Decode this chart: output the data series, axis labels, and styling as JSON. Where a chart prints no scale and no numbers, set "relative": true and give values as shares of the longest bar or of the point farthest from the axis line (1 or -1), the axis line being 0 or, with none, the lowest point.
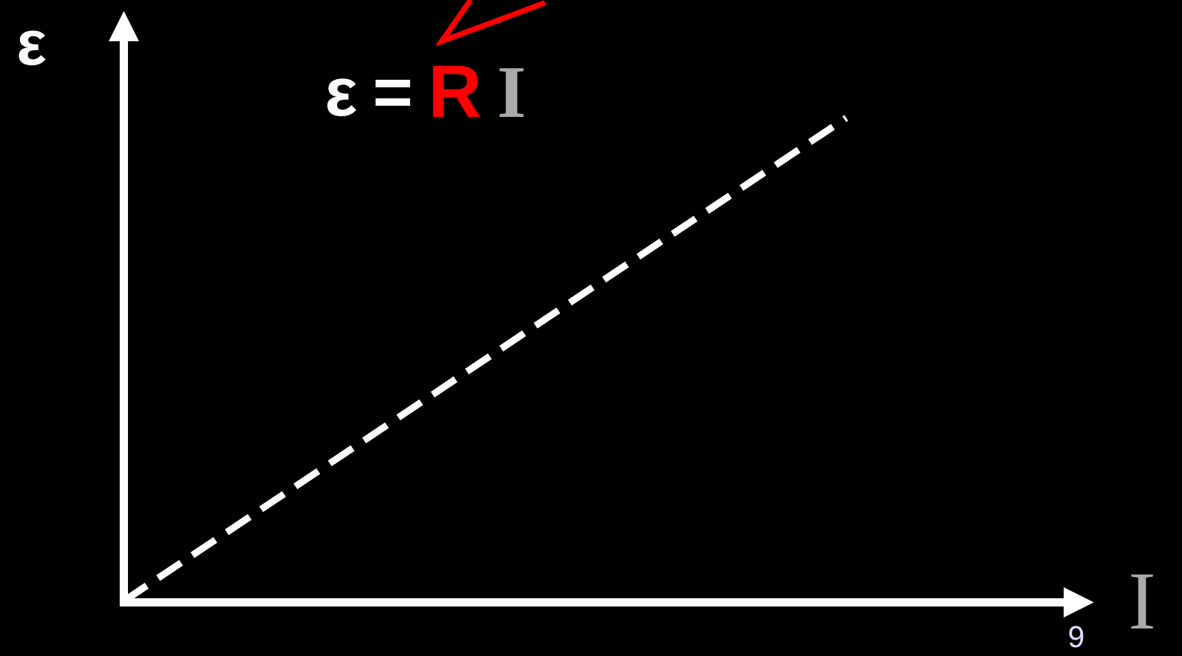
{
  "chart_data": {
    "type": "line",
    "relative": true,
    "xlabel": "I",
    "ylabel": "ε",
    "categories": [
      null,
      null,
      null,
      null,
      null
    ],
    "series": [
      {
        "color": "#ffffff",
        "values": [
          0,
          0.333,
          0.667,
          1,
          null
        ]
      }
    ],
    "line_style": "dashed",
    "marker": "none",
    "grid": false,
    "annotations": [
      "ε = R I",
      "9"
    ]
  }
}
